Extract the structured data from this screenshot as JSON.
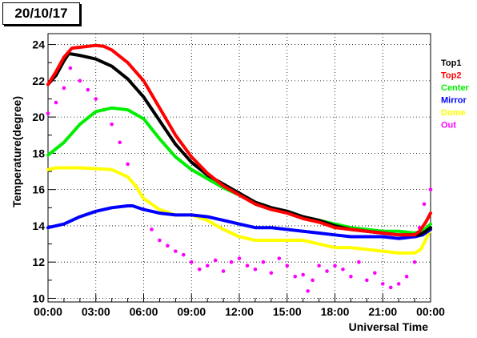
{
  "date_label": "20/10/17",
  "chart_data": {
    "type": "line",
    "title": "20/10/17",
    "xlabel": "Universal Time",
    "ylabel": "Temperature(degree)",
    "xlim": [
      0,
      24
    ],
    "ylim": [
      9.8,
      24.6
    ],
    "grid": true,
    "legend_position": "right",
    "x_ticks": [
      {
        "v": 0,
        "label": "00:00"
      },
      {
        "v": 3,
        "label": "03:00"
      },
      {
        "v": 6,
        "label": "06:00"
      },
      {
        "v": 9,
        "label": "09:00"
      },
      {
        "v": 12,
        "label": "12:00"
      },
      {
        "v": 15,
        "label": "15:00"
      },
      {
        "v": 18,
        "label": "18:00"
      },
      {
        "v": 21,
        "label": "21:00"
      },
      {
        "v": 24,
        "label": "00:00"
      }
    ],
    "y_ticks": [
      {
        "v": 10,
        "label": "10"
      },
      {
        "v": 12,
        "label": "12"
      },
      {
        "v": 14,
        "label": "14"
      },
      {
        "v": 16,
        "label": "16"
      },
      {
        "v": 18,
        "label": "18"
      },
      {
        "v": 20,
        "label": "20"
      },
      {
        "v": 22,
        "label": "22"
      },
      {
        "v": 24,
        "label": "24"
      }
    ],
    "series": [
      {
        "name": "Top1",
        "color": "#000000",
        "style": "line",
        "x": [
          0,
          0.5,
          1,
          1.3,
          2,
          3,
          4,
          5,
          6,
          7,
          8,
          9,
          10,
          11,
          12,
          13,
          14,
          15,
          16,
          17,
          18,
          19,
          20,
          21,
          22,
          23,
          23.3,
          23.7,
          24
        ],
        "y": [
          21.8,
          22.3,
          23.1,
          23.5,
          23.4,
          23.2,
          22.8,
          22.1,
          21.1,
          19.8,
          18.5,
          17.5,
          16.8,
          16.3,
          15.8,
          15.3,
          15.0,
          14.8,
          14.5,
          14.3,
          14.0,
          13.8,
          13.7,
          13.6,
          13.5,
          13.5,
          13.5,
          13.7,
          13.9
        ]
      },
      {
        "name": "Top2",
        "color": "#ff0000",
        "style": "line",
        "x": [
          0,
          0.5,
          1,
          1.5,
          2,
          3,
          3.5,
          4,
          5,
          6,
          7,
          8,
          9,
          10,
          11,
          12,
          13,
          14,
          15,
          16,
          17,
          18,
          19,
          20,
          21,
          22,
          23,
          23.3,
          23.7,
          24
        ],
        "y": [
          21.8,
          22.5,
          23.3,
          23.8,
          23.85,
          23.95,
          23.9,
          23.7,
          23.0,
          22.0,
          20.5,
          19.0,
          17.8,
          16.9,
          16.2,
          15.7,
          15.2,
          14.9,
          14.7,
          14.4,
          14.2,
          13.9,
          13.8,
          13.7,
          13.6,
          13.5,
          13.5,
          13.7,
          14.2,
          14.7
        ]
      },
      {
        "name": "Center",
        "color": "#00ee00",
        "style": "line",
        "x": [
          0,
          1,
          2,
          3,
          4,
          5,
          6,
          7,
          8,
          9,
          10,
          11,
          12,
          13,
          14,
          15,
          16,
          17,
          18,
          19,
          20,
          21,
          22,
          23,
          23.5,
          24
        ],
        "y": [
          17.9,
          18.6,
          19.6,
          20.3,
          20.5,
          20.4,
          19.9,
          18.8,
          17.8,
          17.1,
          16.6,
          16.1,
          15.7,
          15.3,
          15.0,
          14.8,
          14.5,
          14.3,
          14.1,
          13.9,
          13.8,
          13.7,
          13.7,
          13.6,
          13.7,
          14.1
        ]
      },
      {
        "name": "Mirror",
        "color": "#0000ff",
        "style": "line",
        "x": [
          0,
          1,
          2,
          3,
          4,
          5,
          5.3,
          6,
          7,
          8,
          9,
          10,
          11,
          12,
          13,
          14,
          15,
          16,
          17,
          18,
          19,
          20,
          21,
          22,
          23,
          23.5,
          24
        ],
        "y": [
          13.9,
          14.1,
          14.5,
          14.8,
          15.0,
          15.1,
          15.1,
          14.9,
          14.7,
          14.6,
          14.6,
          14.5,
          14.3,
          14.1,
          13.9,
          13.9,
          13.8,
          13.7,
          13.6,
          13.5,
          13.4,
          13.4,
          13.4,
          13.3,
          13.4,
          13.5,
          13.8
        ]
      },
      {
        "name": "Dome",
        "color": "#ffff00",
        "style": "line",
        "x": [
          0,
          0.5,
          1,
          2,
          3,
          4,
          5,
          5.5,
          6,
          7,
          8,
          9,
          10,
          11,
          12,
          13,
          14,
          15,
          16,
          17,
          17.5,
          18,
          19,
          20,
          21,
          22,
          23,
          23.4,
          24
        ],
        "y": [
          17.1,
          17.2,
          17.2,
          17.2,
          17.15,
          17.1,
          16.7,
          16.2,
          15.5,
          14.9,
          14.6,
          14.6,
          14.3,
          13.8,
          13.4,
          13.2,
          13.2,
          13.2,
          13.2,
          13.0,
          12.9,
          12.8,
          12.8,
          12.7,
          12.6,
          12.5,
          12.5,
          12.7,
          13.8
        ]
      },
      {
        "name": "Out",
        "color": "#ff00ff",
        "style": "scatter",
        "x": [
          0,
          0.5,
          1,
          1.4,
          2,
          2.5,
          3,
          3.5,
          4,
          4.5,
          5,
          5.5,
          6,
          6.5,
          7,
          7.5,
          8,
          8.5,
          9,
          9.5,
          10,
          10.5,
          11,
          11.5,
          12,
          12.5,
          13,
          13.5,
          14,
          14.5,
          15,
          15.5,
          16,
          16.3,
          16.6,
          17,
          17.5,
          18,
          18.5,
          19,
          19.5,
          20,
          20.5,
          21,
          21.5,
          22,
          22.5,
          23,
          23.3,
          23.6,
          24
        ],
        "y": [
          20.2,
          20.8,
          21.6,
          22.7,
          22.0,
          21.5,
          21.0,
          20.4,
          19.6,
          18.6,
          17.4,
          16.2,
          14.9,
          13.8,
          13.2,
          12.9,
          12.6,
          12.4,
          12.0,
          11.6,
          11.8,
          12.1,
          11.5,
          12.0,
          12.2,
          11.8,
          11.6,
          12.0,
          11.4,
          12.2,
          11.8,
          11.2,
          11.3,
          10.4,
          11.0,
          11.8,
          11.5,
          11.8,
          11.6,
          11.2,
          12.0,
          11.0,
          11.4,
          10.8,
          10.6,
          10.8,
          11.2,
          12.0,
          13.9,
          15.2,
          16.0
        ]
      }
    ]
  }
}
